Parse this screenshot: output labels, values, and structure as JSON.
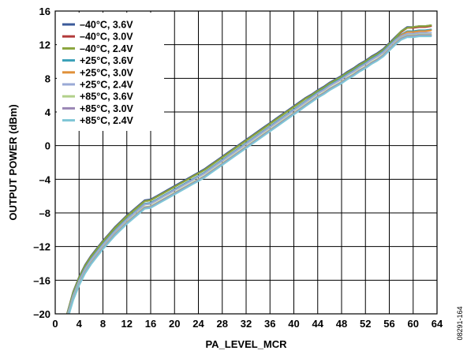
{
  "figure_id": "08291-164",
  "chart_data": {
    "type": "line",
    "xlabel": "PA_LEVEL_MCR",
    "ylabel": "OUTPUT POWER (dBm)",
    "xlim": [
      0,
      64
    ],
    "ylim": [
      -20,
      16
    ],
    "x_ticks": [
      0,
      4,
      8,
      12,
      16,
      20,
      24,
      28,
      32,
      36,
      40,
      44,
      48,
      52,
      56,
      60,
      64
    ],
    "y_ticks": [
      -20,
      -16,
      -12,
      -8,
      -4,
      0,
      4,
      8,
      12,
      16
    ],
    "y_tick_labels": [
      "–20",
      "–16",
      "–12",
      "–8",
      "–4",
      "0",
      "4",
      "8",
      "12",
      "16"
    ],
    "grid": true,
    "legend_position": "top-left",
    "x": [
      2,
      3,
      4,
      5,
      6,
      7,
      8,
      9,
      10,
      11,
      12,
      13,
      14,
      15,
      16,
      17,
      18,
      19,
      20,
      21,
      22,
      23,
      24,
      25,
      26,
      27,
      28,
      29,
      30,
      31,
      32,
      33,
      34,
      35,
      36,
      37,
      38,
      39,
      40,
      41,
      42,
      43,
      44,
      45,
      46,
      47,
      48,
      49,
      50,
      51,
      52,
      53,
      54,
      55,
      56,
      57,
      58,
      59,
      60,
      61,
      62,
      63
    ],
    "series": [
      {
        "name": "–40°C, 3.6V",
        "color": "#3a5a9a",
        "values": [
          -20.0,
          -17.4,
          -15.6,
          -14.2,
          -13.1,
          -12.2,
          -11.3,
          -10.5,
          -9.7,
          -9.0,
          -8.3,
          -7.7,
          -7.1,
          -6.5,
          -6.4,
          -6.0,
          -5.6,
          -5.2,
          -4.8,
          -4.4,
          -4.0,
          -3.6,
          -3.2,
          -2.8,
          -2.3,
          -1.8,
          -1.3,
          -0.8,
          -0.3,
          0.2,
          0.7,
          1.2,
          1.7,
          2.2,
          2.7,
          3.2,
          3.7,
          4.2,
          4.7,
          5.2,
          5.7,
          6.1,
          6.6,
          7.0,
          7.5,
          7.9,
          8.3,
          8.8,
          9.2,
          9.7,
          10.1,
          10.6,
          11.0,
          11.5,
          12.2,
          12.9,
          13.6,
          14.1,
          14.1,
          14.2,
          14.2,
          14.3
        ]
      },
      {
        "name": "–40°C, 3.0V",
        "color": "#b23a3a",
        "values": [
          -20.0,
          -17.5,
          -15.7,
          -14.3,
          -13.2,
          -12.3,
          -11.4,
          -10.6,
          -9.8,
          -9.1,
          -8.4,
          -7.8,
          -7.2,
          -6.6,
          -6.5,
          -6.1,
          -5.7,
          -5.3,
          -4.9,
          -4.5,
          -4.1,
          -3.7,
          -3.3,
          -2.9,
          -2.4,
          -1.9,
          -1.4,
          -0.9,
          -0.4,
          0.1,
          0.6,
          1.1,
          1.6,
          2.1,
          2.6,
          3.1,
          3.6,
          4.1,
          4.6,
          5.1,
          5.6,
          6.0,
          6.5,
          6.9,
          7.4,
          7.8,
          8.2,
          8.7,
          9.1,
          9.6,
          10.0,
          10.5,
          10.9,
          11.4,
          12.1,
          12.8,
          13.5,
          14.0,
          14.0,
          14.1,
          14.1,
          14.2
        ]
      },
      {
        "name": "–40°C, 2.4V",
        "color": "#8aa53c",
        "values": [
          -20.0,
          -17.5,
          -15.7,
          -14.3,
          -13.2,
          -12.3,
          -11.4,
          -10.6,
          -9.8,
          -9.1,
          -8.4,
          -7.8,
          -7.2,
          -6.6,
          -6.5,
          -6.1,
          -5.7,
          -5.3,
          -4.9,
          -4.5,
          -4.1,
          -3.7,
          -3.3,
          -2.9,
          -2.4,
          -1.9,
          -1.4,
          -0.9,
          -0.4,
          0.1,
          0.6,
          1.1,
          1.6,
          2.1,
          2.6,
          3.1,
          3.6,
          4.1,
          4.6,
          5.1,
          5.6,
          6.0,
          6.5,
          6.9,
          7.4,
          7.8,
          8.2,
          8.7,
          9.1,
          9.6,
          10.0,
          10.5,
          10.9,
          11.4,
          12.1,
          12.8,
          13.6,
          14.0,
          14.1,
          14.2,
          14.2,
          14.3
        ]
      },
      {
        "name": "+25°C, 3.6V",
        "color": "#3aa0b8",
        "values": [
          -20.2,
          -17.8,
          -16.0,
          -14.6,
          -13.5,
          -12.6,
          -11.7,
          -10.9,
          -10.1,
          -9.4,
          -8.7,
          -8.1,
          -7.5,
          -6.9,
          -6.8,
          -6.4,
          -6.0,
          -5.6,
          -5.2,
          -4.8,
          -4.4,
          -4.0,
          -3.6,
          -3.2,
          -2.7,
          -2.2,
          -1.7,
          -1.2,
          -0.7,
          -0.2,
          0.3,
          0.8,
          1.3,
          1.8,
          2.3,
          2.8,
          3.3,
          3.8,
          4.3,
          4.8,
          5.3,
          5.8,
          6.3,
          6.7,
          7.2,
          7.6,
          8.0,
          8.5,
          8.9,
          9.4,
          9.8,
          10.3,
          10.7,
          11.2,
          11.9,
          12.6,
          13.2,
          13.6,
          13.6,
          13.7,
          13.7,
          13.8
        ]
      },
      {
        "name": "+25°C, 3.0V",
        "color": "#e0913a",
        "values": [
          -20.3,
          -17.9,
          -16.1,
          -14.7,
          -13.6,
          -12.7,
          -11.8,
          -11.0,
          -10.2,
          -9.5,
          -8.8,
          -8.2,
          -7.6,
          -7.0,
          -6.9,
          -6.5,
          -6.1,
          -5.7,
          -5.3,
          -4.9,
          -4.5,
          -4.1,
          -3.7,
          -3.3,
          -2.8,
          -2.3,
          -1.8,
          -1.3,
          -0.8,
          -0.3,
          0.2,
          0.7,
          1.2,
          1.7,
          2.2,
          2.7,
          3.2,
          3.7,
          4.2,
          4.7,
          5.2,
          5.7,
          6.2,
          6.6,
          7.1,
          7.5,
          7.9,
          8.4,
          8.8,
          9.3,
          9.7,
          10.2,
          10.6,
          11.1,
          11.8,
          12.5,
          13.1,
          13.5,
          13.5,
          13.6,
          13.6,
          13.7
        ]
      },
      {
        "name": "+25°C, 2.4V",
        "color": "#9aaad6",
        "values": [
          -20.3,
          -17.9,
          -16.1,
          -14.7,
          -13.6,
          -12.7,
          -11.8,
          -11.0,
          -10.2,
          -9.5,
          -8.8,
          -8.2,
          -7.6,
          -7.0,
          -6.9,
          -6.5,
          -6.1,
          -5.7,
          -5.3,
          -4.9,
          -4.5,
          -4.1,
          -3.7,
          -3.3,
          -2.8,
          -2.3,
          -1.8,
          -1.3,
          -0.8,
          -0.3,
          0.2,
          0.7,
          1.2,
          1.7,
          2.2,
          2.7,
          3.2,
          3.7,
          4.2,
          4.7,
          5.2,
          5.7,
          6.2,
          6.6,
          7.1,
          7.5,
          7.9,
          8.4,
          8.8,
          9.3,
          9.7,
          10.2,
          10.6,
          11.1,
          11.8,
          12.5,
          13.0,
          13.3,
          13.3,
          13.4,
          13.4,
          13.4
        ]
      },
      {
        "name": "+85°C, 3.6V",
        "color": "#b2d08a",
        "values": [
          -20.6,
          -18.2,
          -16.4,
          -15.0,
          -13.9,
          -13.0,
          -12.1,
          -11.3,
          -10.5,
          -9.8,
          -9.1,
          -8.5,
          -7.9,
          -7.3,
          -7.2,
          -6.8,
          -6.4,
          -6.0,
          -5.6,
          -5.2,
          -4.8,
          -4.4,
          -4.0,
          -3.6,
          -3.1,
          -2.6,
          -2.1,
          -1.6,
          -1.1,
          -0.6,
          -0.1,
          0.4,
          0.9,
          1.4,
          1.9,
          2.4,
          2.9,
          3.4,
          3.9,
          4.4,
          4.9,
          5.4,
          5.9,
          6.3,
          6.8,
          7.2,
          7.6,
          8.1,
          8.5,
          9.0,
          9.4,
          9.9,
          10.3,
          10.8,
          11.5,
          12.2,
          12.8,
          13.1,
          13.1,
          13.2,
          13.2,
          13.2
        ]
      },
      {
        "name": "+85°C, 3.0V",
        "color": "#9a86b4",
        "values": [
          -20.7,
          -18.3,
          -16.5,
          -15.1,
          -14.0,
          -13.1,
          -12.2,
          -11.4,
          -10.6,
          -9.9,
          -9.2,
          -8.6,
          -8.0,
          -7.4,
          -7.3,
          -6.9,
          -6.5,
          -6.1,
          -5.7,
          -5.3,
          -4.9,
          -4.5,
          -4.1,
          -3.7,
          -3.2,
          -2.7,
          -2.2,
          -1.7,
          -1.2,
          -0.7,
          -0.2,
          0.3,
          0.8,
          1.3,
          1.8,
          2.3,
          2.8,
          3.3,
          3.8,
          4.3,
          4.8,
          5.3,
          5.8,
          6.2,
          6.7,
          7.1,
          7.5,
          8.0,
          8.4,
          8.9,
          9.3,
          9.8,
          10.2,
          10.7,
          11.4,
          12.1,
          12.7,
          13.0,
          13.0,
          13.1,
          13.1,
          13.1
        ]
      },
      {
        "name": "+85°C, 2.4V",
        "color": "#7fc6d6",
        "values": [
          -20.8,
          -18.4,
          -16.6,
          -15.2,
          -14.1,
          -13.2,
          -12.3,
          -11.5,
          -10.7,
          -10.0,
          -9.3,
          -8.7,
          -8.1,
          -7.5,
          -7.4,
          -7.0,
          -6.6,
          -6.2,
          -5.8,
          -5.4,
          -5.0,
          -4.6,
          -4.2,
          -3.8,
          -3.3,
          -2.8,
          -2.3,
          -1.8,
          -1.3,
          -0.8,
          -0.3,
          0.2,
          0.7,
          1.2,
          1.7,
          2.2,
          2.7,
          3.2,
          3.7,
          4.2,
          4.7,
          5.2,
          5.7,
          6.1,
          6.6,
          7.0,
          7.4,
          7.9,
          8.3,
          8.8,
          9.2,
          9.7,
          10.1,
          10.6,
          11.3,
          12.0,
          12.6,
          12.9,
          12.9,
          13.0,
          13.0,
          13.0
        ]
      }
    ]
  }
}
